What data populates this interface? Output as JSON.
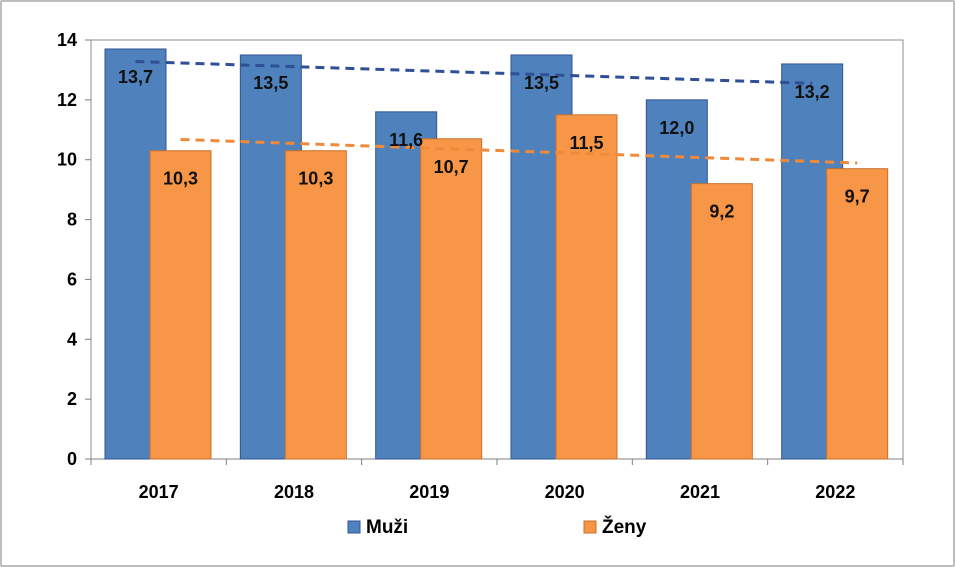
{
  "chart_data": {
    "type": "bar",
    "categories": [
      "2017",
      "2018",
      "2019",
      "2020",
      "2021",
      "2022"
    ],
    "series": [
      {
        "name": "Muži",
        "values": [
          13.7,
          13.5,
          11.6,
          13.5,
          12.0,
          13.2
        ],
        "labels": [
          "13,7",
          "13,5",
          "11,6",
          "13,5",
          "12,0",
          "13,2"
        ],
        "color": "#4f81bd",
        "trend_color": "#2f4f96"
      },
      {
        "name": "Ženy",
        "values": [
          10.3,
          10.3,
          10.7,
          11.5,
          9.2,
          9.7
        ],
        "labels": [
          "10,3",
          "10,3",
          "10,7",
          "11,5",
          "9,2",
          "9,7"
        ],
        "color": "#f79646",
        "trend_color": "#f08a3a"
      }
    ],
    "trendlines": "linear, dashed",
    "ylim": [
      0,
      14
    ],
    "yticks": [
      "0",
      "2",
      "4",
      "6",
      "8",
      "10",
      "12",
      "14"
    ],
    "grid": false,
    "legend_position": "bottom"
  }
}
